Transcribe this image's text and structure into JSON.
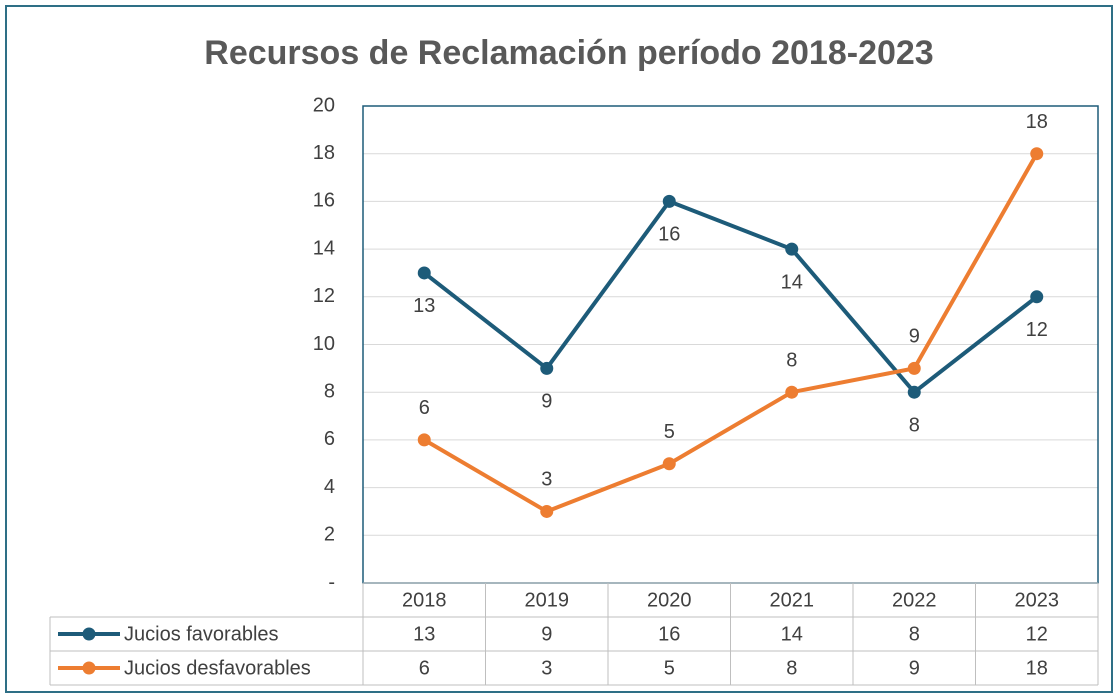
{
  "chart_data": {
    "type": "line",
    "title": "Recursos de Reclamación período 2018-2023",
    "categories": [
      "2018",
      "2019",
      "2020",
      "2021",
      "2022",
      "2023"
    ],
    "series": [
      {
        "name": "Jucios favorables",
        "color": "#1d5b79",
        "values": [
          13,
          9,
          16,
          14,
          8,
          12
        ],
        "label_position": "below"
      },
      {
        "name": "Jucios desfavorables",
        "color": "#ed7d31",
        "values": [
          6,
          3,
          5,
          8,
          9,
          18
        ],
        "label_position": "above"
      }
    ],
    "ylim": [
      0,
      20
    ],
    "yticks": [
      {
        "value": 0,
        "label": "-"
      },
      2,
      4,
      6,
      8,
      10,
      12,
      14,
      16,
      18,
      20
    ],
    "grid": true,
    "data_table": true
  }
}
